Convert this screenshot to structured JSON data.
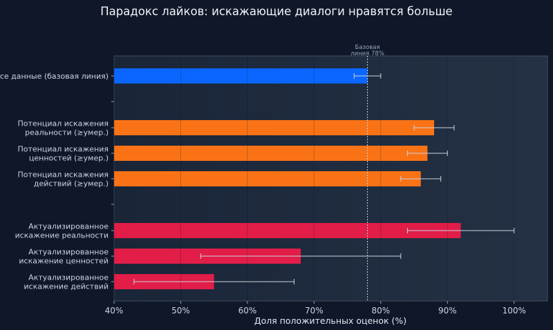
{
  "chart_data": {
    "type": "bar",
    "orientation": "horizontal",
    "title": "Парадокс лайков: искажающие диалоги нравятся больше",
    "xlabel": "Доля положительных оценок (%)",
    "ylabel": "",
    "xlim": [
      40,
      105
    ],
    "x_ticks": [
      "40%",
      "50%",
      "60%",
      "70%",
      "80%",
      "90%",
      "100%"
    ],
    "grid": "vertical",
    "categories": [
      {
        "label": [
          "Все данные (базовая линия)"
        ],
        "value": 78,
        "err_low": 76,
        "err_high": 80,
        "color": "#0a66ff"
      },
      {
        "label": [
          "Потенциал искажения",
          "реальности (≥умер.)"
        ],
        "value": 88,
        "err_low": 85,
        "err_high": 91,
        "color": "#f97316"
      },
      {
        "label": [
          "Потенциал искажения",
          "ценностей (≥умер.)"
        ],
        "value": 87,
        "err_low": 84,
        "err_high": 90,
        "color": "#f97316"
      },
      {
        "label": [
          "Потенциал искажения",
          "действий (≥умер.)"
        ],
        "value": 86,
        "err_low": 83,
        "err_high": 89,
        "color": "#f97316"
      },
      {
        "label": [
          "Актуализированное",
          "искажение реальности"
        ],
        "value": 92,
        "err_low": 84,
        "err_high": 100,
        "color": "#e11d48"
      },
      {
        "label": [
          "Актуализированное",
          "искажение ценностей"
        ],
        "value": 68,
        "err_low": 53,
        "err_high": 83,
        "color": "#e11d48"
      },
      {
        "label": [
          "Актуализированное",
          "искажение действий"
        ],
        "value": 55,
        "err_low": 43,
        "err_high": 67,
        "color": "#e11d48"
      }
    ],
    "reference_line": {
      "value": 78,
      "label": [
        "Базовая",
        "линия 78%"
      ]
    }
  }
}
